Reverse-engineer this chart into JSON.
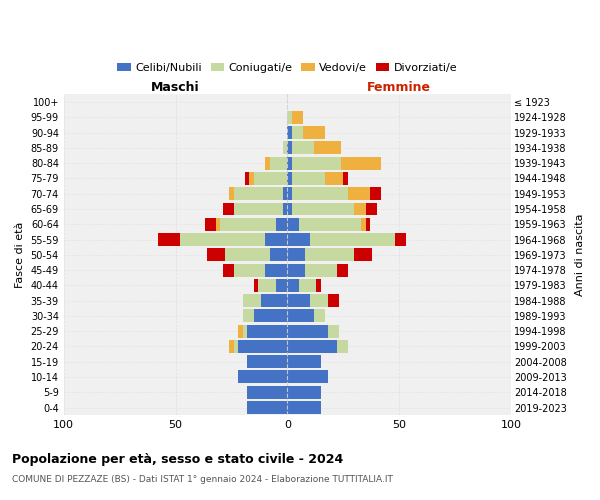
{
  "age_groups": [
    "0-4",
    "5-9",
    "10-14",
    "15-19",
    "20-24",
    "25-29",
    "30-34",
    "35-39",
    "40-44",
    "45-49",
    "50-54",
    "55-59",
    "60-64",
    "65-69",
    "70-74",
    "75-79",
    "80-84",
    "85-89",
    "90-94",
    "95-99",
    "100+"
  ],
  "birth_years": [
    "2019-2023",
    "2014-2018",
    "2009-2013",
    "2004-2008",
    "1999-2003",
    "1994-1998",
    "1989-1993",
    "1984-1988",
    "1979-1983",
    "1974-1978",
    "1969-1973",
    "1964-1968",
    "1959-1963",
    "1954-1958",
    "1949-1953",
    "1944-1948",
    "1939-1943",
    "1934-1938",
    "1929-1933",
    "1924-1928",
    "≤ 1923"
  ],
  "colors": {
    "celibi": "#4472c4",
    "coniugati": "#c5d9a0",
    "vedovi": "#f0b040",
    "divorziati": "#cc0000"
  },
  "maschi": {
    "celibi": [
      18,
      18,
      22,
      18,
      22,
      18,
      15,
      12,
      5,
      10,
      8,
      10,
      5,
      2,
      2,
      0,
      0,
      0,
      0,
      0,
      0
    ],
    "coniugati": [
      0,
      0,
      0,
      0,
      2,
      2,
      5,
      8,
      8,
      14,
      20,
      38,
      25,
      22,
      22,
      15,
      8,
      2,
      0,
      0,
      0
    ],
    "vedovi": [
      0,
      0,
      0,
      0,
      2,
      2,
      0,
      0,
      0,
      0,
      0,
      0,
      2,
      0,
      2,
      2,
      2,
      0,
      0,
      0,
      0
    ],
    "divorziati": [
      0,
      0,
      0,
      0,
      0,
      0,
      0,
      0,
      2,
      5,
      8,
      10,
      5,
      5,
      0,
      2,
      0,
      0,
      0,
      0,
      0
    ]
  },
  "femmine": {
    "celibi": [
      15,
      15,
      18,
      15,
      22,
      18,
      12,
      10,
      5,
      8,
      8,
      10,
      5,
      2,
      2,
      2,
      2,
      2,
      2,
      0,
      0
    ],
    "coniugati": [
      0,
      0,
      0,
      0,
      5,
      5,
      5,
      8,
      8,
      14,
      22,
      38,
      28,
      28,
      25,
      15,
      22,
      10,
      5,
      2,
      0
    ],
    "vedovi": [
      0,
      0,
      0,
      0,
      0,
      0,
      0,
      0,
      0,
      0,
      0,
      0,
      2,
      5,
      10,
      8,
      18,
      12,
      10,
      5,
      0
    ],
    "divorziati": [
      0,
      0,
      0,
      0,
      0,
      0,
      0,
      5,
      2,
      5,
      8,
      5,
      2,
      5,
      5,
      2,
      0,
      0,
      0,
      0,
      0
    ]
  },
  "xlim": 100,
  "title": "Popolazione per età, sesso e stato civile - 2024",
  "subtitle": "COMUNE DI PEZZAZE (BS) - Dati ISTAT 1° gennaio 2024 - Elaborazione TUTTITALIA.IT",
  "xlabel_left": "Maschi",
  "xlabel_right": "Femmine",
  "ylabel_left": "Fasce di età",
  "ylabel_right": "Anni di nascita",
  "background_color": "#f0f0f0"
}
